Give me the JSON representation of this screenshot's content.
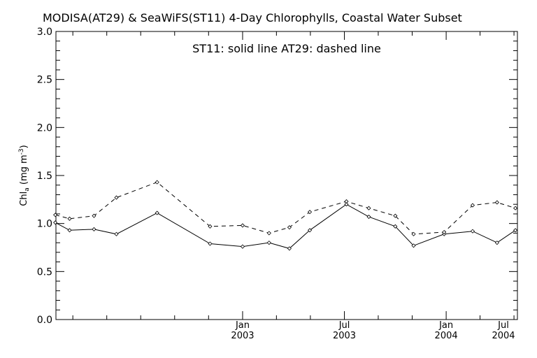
{
  "chart_data": {
    "type": "line",
    "title": "MODISA(AT29) & SeaWiFS(ST11) 4-Day Chlorophylls, Coastal Water Subset",
    "annotation": "ST11: solid line   AT29: dashed line",
    "ylabel_main": "Chl",
    "ylabel_sub": "a",
    "ylabel_units": " (mg m",
    "ylabel_sup": "-3",
    "ylabel_close": ")",
    "xlabel": "",
    "ylim": [
      0.0,
      3.0
    ],
    "y_ticks": [
      "0.0",
      "0.5",
      "1.0",
      "1.5",
      "2.0",
      "2.5",
      "3.0"
    ],
    "xlim_months": [
      2002.083,
      2004.35
    ],
    "x_ticks": [
      {
        "month": "Jan",
        "year": "2003"
      },
      {
        "month": "Jul",
        "year": "2003"
      },
      {
        "month": "Jan",
        "year": "2004"
      },
      {
        "month": "Jul",
        "year": "2004"
      }
    ],
    "grid": false,
    "series": [
      {
        "label": "ST11",
        "style": "solid",
        "x": [
          2002.08,
          2002.15,
          2002.27,
          2002.38,
          2002.58,
          2002.84,
          2003.0,
          2003.13,
          2003.23,
          2003.33,
          2003.51,
          2003.62,
          2003.75,
          2003.84,
          2003.99,
          2004.13,
          2004.25,
          2004.34
        ],
        "y": [
          1.01,
          0.93,
          0.94,
          0.89,
          1.11,
          0.79,
          0.76,
          0.8,
          0.74,
          0.93,
          1.2,
          1.07,
          0.97,
          0.77,
          0.89,
          0.92,
          0.8,
          0.93
        ]
      },
      {
        "label": "AT29",
        "style": "dashed",
        "x": [
          2002.08,
          2002.15,
          2002.27,
          2002.38,
          2002.58,
          2002.84,
          2003.0,
          2003.13,
          2003.23,
          2003.33,
          2003.51,
          2003.62,
          2003.75,
          2003.84,
          2003.99,
          2004.13,
          2004.25,
          2004.34
        ],
        "y": [
          1.09,
          1.05,
          1.08,
          1.27,
          1.43,
          0.97,
          0.98,
          0.9,
          0.96,
          1.12,
          1.23,
          1.16,
          1.08,
          0.89,
          0.91,
          1.19,
          1.22,
          1.16
        ]
      }
    ]
  }
}
